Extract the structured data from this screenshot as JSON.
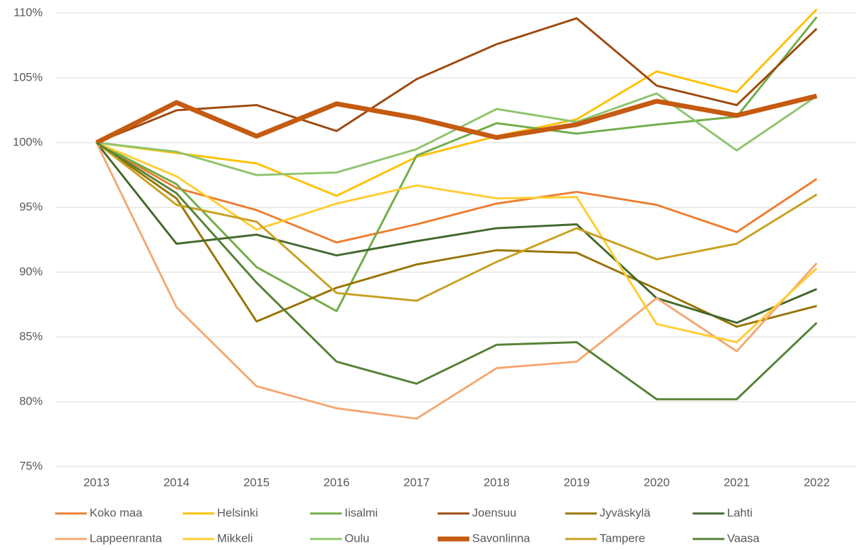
{
  "chart_data": {
    "type": "line",
    "x": [
      "2013",
      "2014",
      "2015",
      "2016",
      "2017",
      "2018",
      "2019",
      "2020",
      "2021",
      "2022"
    ],
    "ylim": [
      75,
      110
    ],
    "yticks": [
      {
        "value": 75,
        "label": "75%"
      },
      {
        "value": 80,
        "label": "80%"
      },
      {
        "value": 85,
        "label": "85%"
      },
      {
        "value": 90,
        "label": "90%"
      },
      {
        "value": 95,
        "label": "95%"
      },
      {
        "value": 100,
        "label": "100%"
      },
      {
        "value": 105,
        "label": "105%"
      },
      {
        "value": 110,
        "label": "110%"
      }
    ],
    "grid": true,
    "legend": "bottom",
    "series": [
      {
        "name": "Koko maa",
        "color": "#ed7d31",
        "width": 3,
        "values": [
          100,
          96.5,
          94.8,
          92.3,
          93.7,
          95.3,
          96.2,
          95.2,
          93.1,
          97.2
        ]
      },
      {
        "name": "Helsinki",
        "color": "#ffc000",
        "width": 3,
        "values": [
          100,
          99.2,
          98.4,
          95.9,
          98.9,
          100.5,
          101.8,
          105.5,
          103.9,
          110.3
        ]
      },
      {
        "name": "Iisalmi",
        "color": "#70ad47",
        "width": 3,
        "values": [
          100,
          96.8,
          90.4,
          87.0,
          99.0,
          101.5,
          100.7,
          101.4,
          102.0,
          109.7
        ]
      },
      {
        "name": "Joensuu",
        "color": "#9e480e",
        "width": 3,
        "values": [
          100,
          102.5,
          102.9,
          100.9,
          104.9,
          107.6,
          109.6,
          104.4,
          102.9,
          108.8
        ]
      },
      {
        "name": "Jyväskylä",
        "color": "#997300",
        "width": 3,
        "values": [
          100,
          95.7,
          86.2,
          88.8,
          90.6,
          91.7,
          91.5,
          88.7,
          85.8,
          87.4
        ]
      },
      {
        "name": "Lahti",
        "color": "#43682b",
        "width": 3,
        "values": [
          100,
          92.2,
          92.9,
          91.3,
          92.4,
          93.4,
          93.7,
          88.0,
          86.1,
          88.7
        ]
      },
      {
        "name": "Lappeenranta",
        "color": "#f4a872",
        "width": 3,
        "values": [
          100,
          87.3,
          81.2,
          79.5,
          78.7,
          82.6,
          83.1,
          88.0,
          83.9,
          90.7
        ]
      },
      {
        "name": "Mikkeli",
        "color": "#ffcd33",
        "width": 3,
        "values": [
          100,
          97.4,
          93.3,
          95.3,
          96.7,
          95.7,
          95.8,
          86.0,
          84.6,
          90.3
        ]
      },
      {
        "name": "Oulu",
        "color": "#8fc46e",
        "width": 3,
        "values": [
          100,
          99.3,
          97.5,
          97.7,
          99.5,
          102.6,
          101.6,
          103.8,
          99.4,
          103.6
        ]
      },
      {
        "name": "Savonlinna",
        "color": "#c55a11",
        "width": 7,
        "values": [
          100,
          103.1,
          100.5,
          103.0,
          101.9,
          100.4,
          101.4,
          103.2,
          102.1,
          103.6
        ]
      },
      {
        "name": "Tampere",
        "color": "#c9a020",
        "width": 3,
        "values": [
          100,
          95.2,
          93.9,
          88.4,
          87.8,
          90.8,
          93.4,
          91.0,
          92.2,
          96.0
        ]
      },
      {
        "name": "Vaasa",
        "color": "#548235",
        "width": 3,
        "values": [
          100,
          96.1,
          89.2,
          83.1,
          81.4,
          84.4,
          84.6,
          80.2,
          80.2,
          86.1
        ]
      }
    ]
  }
}
